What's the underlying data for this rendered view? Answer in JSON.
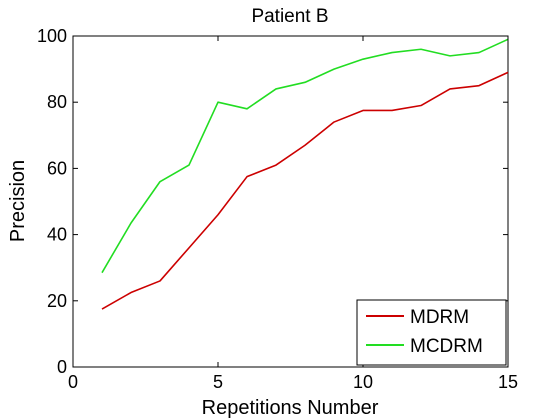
{
  "chart_data": {
    "type": "line",
    "title": "Patient B",
    "xlabel": "Repetitions Number",
    "ylabel": "Precision",
    "xlim": [
      0,
      15
    ],
    "ylim": [
      0,
      100
    ],
    "xticks": [
      0,
      5,
      10,
      15
    ],
    "yticks": [
      0,
      20,
      40,
      60,
      80,
      100
    ],
    "grid": false,
    "legend_position": "bottom-right",
    "x": [
      1,
      2,
      3,
      4,
      5,
      6,
      7,
      8,
      9,
      10,
      11,
      12,
      13,
      14,
      15
    ],
    "series": [
      {
        "name": "MDRM",
        "color": "#cc0000",
        "values": [
          17.5,
          22.5,
          26,
          36,
          46,
          57.5,
          61,
          67,
          74,
          77.5,
          77.5,
          79,
          84,
          85,
          89
        ]
      },
      {
        "name": "MCDRM",
        "color": "#22dd22",
        "values": [
          28.5,
          43.5,
          56,
          61,
          80,
          78,
          84,
          86,
          90,
          93,
          95,
          96,
          94,
          95,
          99
        ]
      }
    ]
  }
}
